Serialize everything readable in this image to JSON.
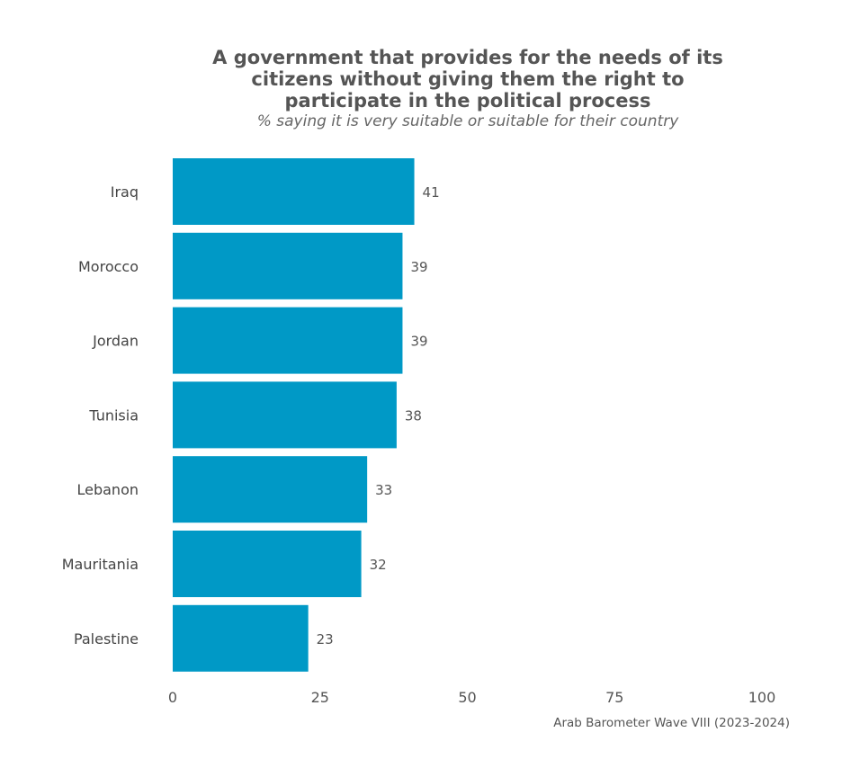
{
  "chart_data": {
    "type": "bar",
    "orientation": "horizontal",
    "title": "A government that provides for the needs of its citizens without giving them the right to participate in the political process",
    "subtitle": "% saying it is very suitable or suitable for their country",
    "categories": [
      "Iraq",
      "Morocco",
      "Jordan",
      "Tunisia",
      "Lebanon",
      "Mauritania",
      "Palestine"
    ],
    "values": [
      41,
      39,
      39,
      38,
      33,
      32,
      23
    ],
    "xlim": [
      0,
      100
    ],
    "xticks": [
      0,
      25,
      50,
      75,
      100
    ],
    "bar_color": "#0099C6",
    "grid": false,
    "source": "Arab Barometer Wave VIII (2023-2024)"
  }
}
